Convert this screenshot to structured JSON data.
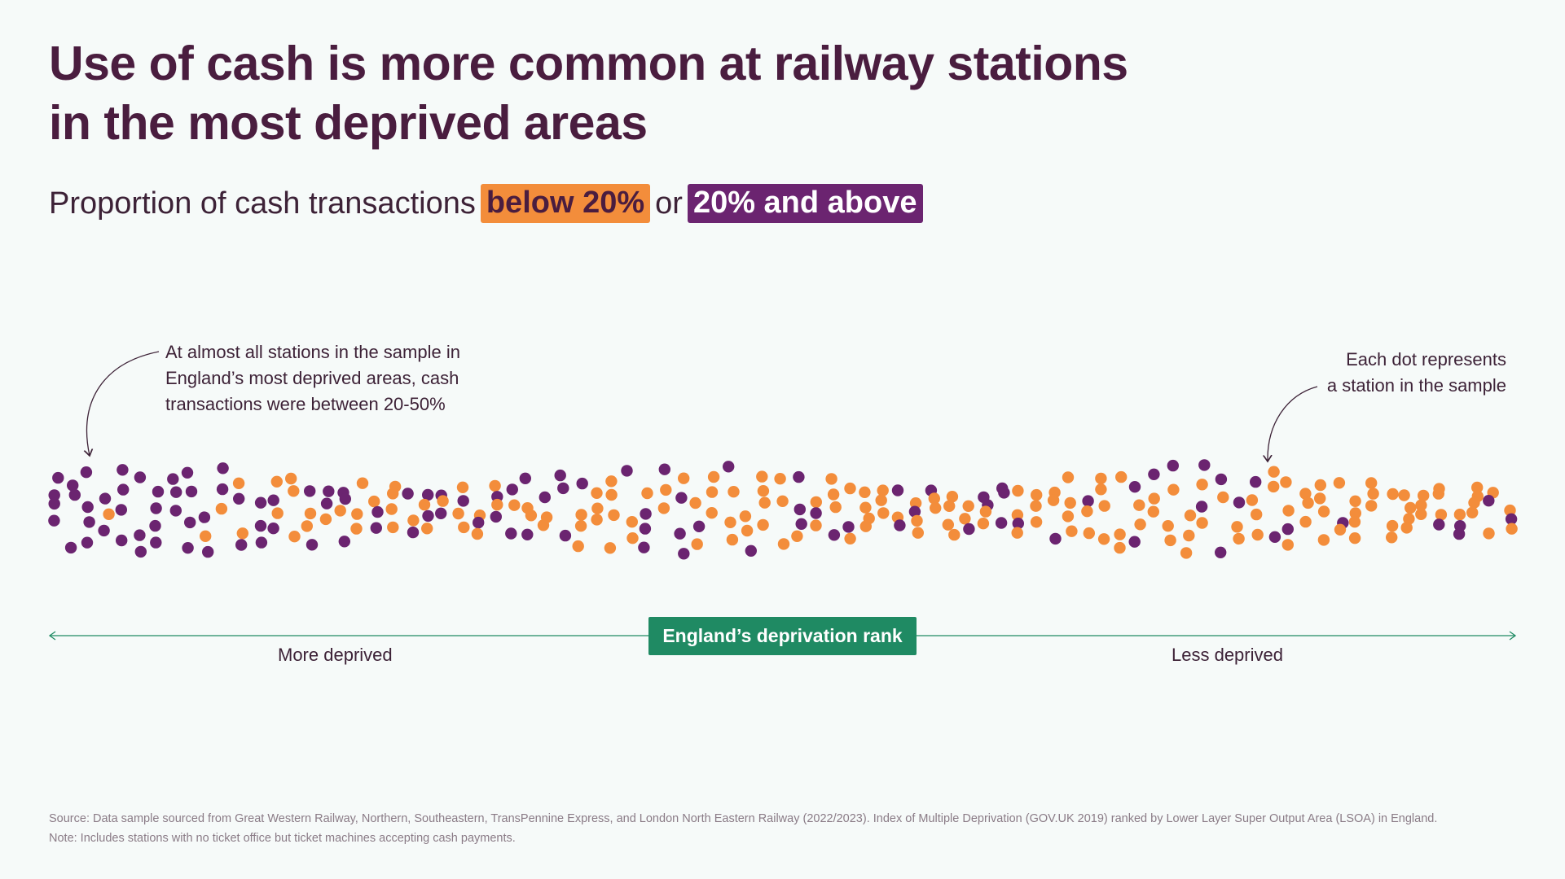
{
  "title": {
    "line1": "Use of cash is more common at railway stations",
    "line2": "in the most deprived areas"
  },
  "subtitle": {
    "prefix": "Proportion of cash transactions",
    "low_label": "below 20%",
    "joiner": "or",
    "high_label": "20% and above"
  },
  "annotations": {
    "left": [
      "At almost all stations in the sample in",
      "England’s most deprived areas, cash",
      "transactions were between 20-50%"
    ],
    "right": [
      "Each dot represents",
      "a station in the sample"
    ]
  },
  "axis": {
    "label": "England’s deprivation rank",
    "left_label": "More deprived",
    "right_label": "Less deprived"
  },
  "footer": {
    "source": "Source: Data sample sourced from Great Western Railway, Northern, Southeastern, TransPennine Express, and London North Eastern Railway (2022/2023). Index of Multiple Deprivation (GOV.UK 2019) ranked by Lower Layer Super Output Area (LSOA) in England.",
    "note": "Note: Includes stations with no ticket office but ticket machines accepting cash payments."
  },
  "colors": {
    "below_20": "#f38d3b",
    "above_20": "#6b2470",
    "axis": "#1f8a63",
    "title": "#4a1d3f"
  },
  "chart_data": {
    "type": "scatter",
    "title": "Use of cash is more common at railway stations in the most deprived areas",
    "subtitle": "Proportion of cash transactions below 20% or 20% and above",
    "xlabel": "England’s deprivation rank",
    "x_direction": [
      "More deprived",
      "Less deprived"
    ],
    "encoding": "beeswarm; each dot represents a station in the sample, ordered by deprivation rank",
    "categories": [
      "below 20%",
      "20% and above"
    ],
    "segments": [
      {
        "rank_range": "1-10",
        "count": 30,
        "share_20_and_above": 0.95
      },
      {
        "rank_range": "11-20",
        "count": 30,
        "share_20_and_above": 0.6
      },
      {
        "rank_range": "21-30",
        "count": 30,
        "share_20_and_above": 0.4
      },
      {
        "rank_range": "31-40",
        "count": 30,
        "share_20_and_above": 0.35
      },
      {
        "rank_range": "41-50",
        "count": 30,
        "share_20_and_above": 0.35
      },
      {
        "rank_range": "51-60",
        "count": 30,
        "share_20_and_above": 0.3
      },
      {
        "rank_range": "61-70",
        "count": 30,
        "share_20_and_above": 0.3
      },
      {
        "rank_range": "71-80",
        "count": 30,
        "share_20_and_above": 0.25
      },
      {
        "rank_range": "81-90",
        "count": 30,
        "share_20_and_above": 0.2
      },
      {
        "rank_range": "91-100",
        "count": 30,
        "share_20_and_above": 0.15
      }
    ]
  }
}
